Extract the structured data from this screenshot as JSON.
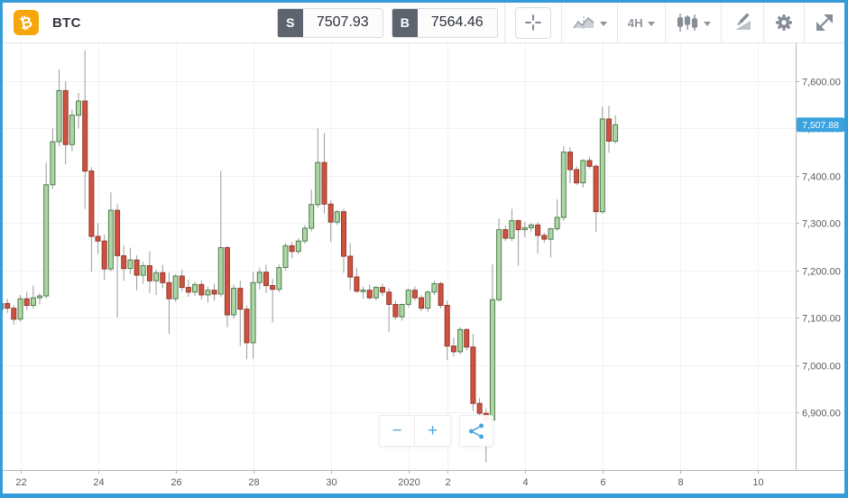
{
  "window": {
    "accent_border_color": "#359cd9"
  },
  "toolbar": {
    "logo_glyph": "₿",
    "logo_color": "#f7a60a",
    "symbol": "BTC",
    "sell_button": {
      "label": "S",
      "value": "7507.93"
    },
    "buy_button": {
      "label": "B",
      "value": "7564.46"
    },
    "interval_label": "4H",
    "icon_names": [
      "crosshair-icon",
      "chart-type-icon",
      "interval-dropdown",
      "candle-style-icon",
      "drawing-tools-icon",
      "gear-icon",
      "fullscreen-icon"
    ]
  },
  "zoom_controls": {
    "zoom_out": "−",
    "zoom_in": "+",
    "share_icon": "share-icon"
  },
  "chart_data": {
    "type": "candlestick",
    "symbol": "BTC",
    "interval": "4H",
    "last_price": 7507.88,
    "last_price_label": "7,507.88",
    "grid": true,
    "colors": {
      "up_fill": "#aed6a5",
      "up_stroke": "#4b7d4a",
      "down_fill": "#cf5240",
      "down_stroke": "#93392c",
      "wick": "#9b9b9b",
      "grid": "#f2f2f3",
      "axis": "#b4b7bd",
      "tick_text": "#585c61",
      "price_tag_bg": "#3aa2de",
      "price_tag_text": "#ffffff"
    },
    "y_axis": {
      "view_range": [
        6778,
        7680
      ],
      "ticks": [
        {
          "price": 7600,
          "label": "7,600.00"
        },
        {
          "price": 7500,
          "label": "7,500.00"
        },
        {
          "price": 7400,
          "label": "7,400.00"
        },
        {
          "price": 7300,
          "label": "7,300.00"
        },
        {
          "price": 7200,
          "label": "7,200.00"
        },
        {
          "price": 7100,
          "label": "7,100.00"
        },
        {
          "price": 7000,
          "label": "7,000.00"
        },
        {
          "price": 6900,
          "label": "6,900.00"
        }
      ]
    },
    "x_axis": {
      "ticks": [
        {
          "label": "22",
          "index": 3
        },
        {
          "label": "24",
          "index": 15
        },
        {
          "label": "26",
          "index": 27
        },
        {
          "label": "28",
          "index": 39
        },
        {
          "label": "30",
          "index": 51
        },
        {
          "label": "2020",
          "index": 63
        },
        {
          "label": "2",
          "index": 69
        },
        {
          "label": "4",
          "index": 81
        },
        {
          "label": "6",
          "index": 93
        },
        {
          "label": "8",
          "index": 105
        },
        {
          "label": "10",
          "index": 117
        }
      ]
    },
    "candles": [
      [
        7118,
        7138,
        7104,
        7130
      ],
      [
        7130,
        7140,
        7110,
        7120
      ],
      [
        7120,
        7126,
        7085,
        7097
      ],
      [
        7097,
        7148,
        7092,
        7140
      ],
      [
        7140,
        7155,
        7116,
        7126
      ],
      [
        7126,
        7168,
        7120,
        7142
      ],
      [
        7142,
        7152,
        7128,
        7146
      ],
      [
        7146,
        7428,
        7140,
        7381
      ],
      [
        7381,
        7500,
        7372,
        7472
      ],
      [
        7472,
        7625,
        7462,
        7580
      ],
      [
        7580,
        7600,
        7424,
        7466
      ],
      [
        7466,
        7540,
        7452,
        7528
      ],
      [
        7528,
        7575,
        7500,
        7558
      ],
      [
        7558,
        7665,
        7330,
        7410
      ],
      [
        7410,
        7418,
        7197,
        7272
      ],
      [
        7272,
        7300,
        7235,
        7262
      ],
      [
        7262,
        7276,
        7180,
        7203
      ],
      [
        7203,
        7365,
        7198,
        7327
      ],
      [
        7327,
        7340,
        7100,
        7231
      ],
      [
        7231,
        7252,
        7178,
        7204
      ],
      [
        7204,
        7248,
        7192,
        7222
      ],
      [
        7222,
        7232,
        7158,
        7190
      ],
      [
        7190,
        7218,
        7172,
        7210
      ],
      [
        7210,
        7240,
        7152,
        7178
      ],
      [
        7178,
        7202,
        7148,
        7195
      ],
      [
        7195,
        7212,
        7162,
        7174
      ],
      [
        7174,
        7196,
        7066,
        7140
      ],
      [
        7140,
        7192,
        7134,
        7188
      ],
      [
        7188,
        7202,
        7156,
        7164
      ],
      [
        7164,
        7180,
        7144,
        7154
      ],
      [
        7154,
        7176,
        7146,
        7170
      ],
      [
        7170,
        7178,
        7138,
        7148
      ],
      [
        7148,
        7166,
        7132,
        7158
      ],
      [
        7158,
        7172,
        7136,
        7150
      ],
      [
        7150,
        7410,
        7144,
        7248
      ],
      [
        7248,
        7252,
        7080,
        7106
      ],
      [
        7106,
        7170,
        7098,
        7162
      ],
      [
        7162,
        7178,
        7040,
        7118
      ],
      [
        7118,
        7126,
        7012,
        7047
      ],
      [
        7047,
        7196,
        7014,
        7174
      ],
      [
        7174,
        7206,
        7160,
        7196
      ],
      [
        7196,
        7212,
        7152,
        7168
      ],
      [
        7168,
        7182,
        7090,
        7160
      ],
      [
        7160,
        7212,
        7154,
        7206
      ],
      [
        7206,
        7258,
        7200,
        7252
      ],
      [
        7252,
        7260,
        7226,
        7240
      ],
      [
        7240,
        7268,
        7234,
        7262
      ],
      [
        7262,
        7296,
        7256,
        7289
      ],
      [
        7289,
        7371,
        7282,
        7339
      ],
      [
        7339,
        7500,
        7332,
        7428
      ],
      [
        7428,
        7490,
        7320,
        7340
      ],
      [
        7340,
        7348,
        7260,
        7302
      ],
      [
        7302,
        7328,
        7296,
        7324
      ],
      [
        7324,
        7330,
        7195,
        7230
      ],
      [
        7230,
        7258,
        7158,
        7186
      ],
      [
        7186,
        7206,
        7152,
        7156
      ],
      [
        7156,
        7166,
        7140,
        7158
      ],
      [
        7158,
        7170,
        7138,
        7142
      ],
      [
        7142,
        7168,
        7136,
        7164
      ],
      [
        7164,
        7172,
        7146,
        7154
      ],
      [
        7154,
        7162,
        7070,
        7128
      ],
      [
        7128,
        7136,
        7096,
        7102
      ],
      [
        7102,
        7130,
        7094,
        7128
      ],
      [
        7128,
        7162,
        7122,
        7158
      ],
      [
        7158,
        7166,
        7136,
        7142
      ],
      [
        7142,
        7148,
        7114,
        7120
      ],
      [
        7120,
        7158,
        7112,
        7154
      ],
      [
        7154,
        7178,
        7148,
        7172
      ],
      [
        7172,
        7176,
        7120,
        7126
      ],
      [
        7126,
        7136,
        7010,
        7040
      ],
      [
        7040,
        7058,
        7018,
        7028
      ],
      [
        7028,
        7080,
        7022,
        7075
      ],
      [
        7075,
        7078,
        7030,
        7038
      ],
      [
        7038,
        7066,
        6902,
        6919
      ],
      [
        6919,
        6930,
        6888,
        6898
      ],
      [
        6898,
        6908,
        6795,
        6884
      ],
      [
        6884,
        7213,
        6878,
        7138
      ],
      [
        7138,
        7310,
        7134,
        7286
      ],
      [
        7286,
        7295,
        7262,
        7268
      ],
      [
        7268,
        7330,
        7262,
        7305
      ],
      [
        7305,
        7308,
        7210,
        7286
      ],
      [
        7286,
        7302,
        7270,
        7290
      ],
      [
        7290,
        7300,
        7282,
        7296
      ],
      [
        7296,
        7302,
        7235,
        7274
      ],
      [
        7274,
        7280,
        7258,
        7266
      ],
      [
        7266,
        7290,
        7227,
        7288
      ],
      [
        7288,
        7350,
        7284,
        7312
      ],
      [
        7312,
        7462,
        7305,
        7450
      ],
      [
        7450,
        7460,
        7384,
        7413
      ],
      [
        7413,
        7420,
        7380,
        7385
      ],
      [
        7385,
        7435,
        7375,
        7432
      ],
      [
        7432,
        7440,
        7415,
        7420
      ],
      [
        7420,
        7424,
        7281,
        7324
      ],
      [
        7324,
        7546,
        7320,
        7520
      ],
      [
        7520,
        7548,
        7449,
        7473
      ],
      [
        7473,
        7528,
        7468,
        7507.88
      ]
    ]
  }
}
